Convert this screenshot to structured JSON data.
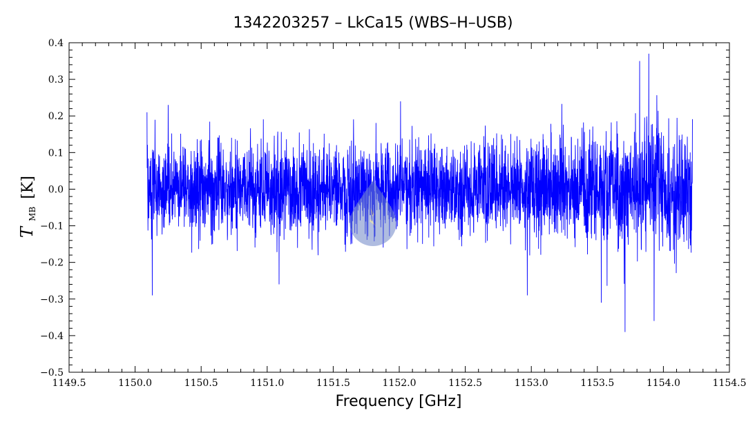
{
  "chart_data": {
    "type": "line",
    "title": "1342203257 – LkCa15 (WBS–H–USB)",
    "xlabel": "Frequency [GHz]",
    "ylabel": {
      "symbol": "T",
      "subscript": "MB",
      "unit": "[K]"
    },
    "xlim": [
      1149.5,
      1154.5
    ],
    "ylim": [
      -0.5,
      0.4
    ],
    "xticks": [
      1149.5,
      1150.0,
      1150.5,
      1151.0,
      1151.5,
      1152.0,
      1152.5,
      1153.0,
      1153.5,
      1154.0,
      1154.5
    ],
    "xtick_labels": [
      "1149.5",
      "1150.0",
      "1150.5",
      "1151.0",
      "1151.5",
      "1152.0",
      "1152.5",
      "1153.0",
      "1153.5",
      "1154.0",
      "1154.5"
    ],
    "yticks": [
      -0.5,
      -0.4,
      -0.3,
      -0.2,
      -0.1,
      0.0,
      0.1,
      0.2,
      0.3,
      0.4
    ],
    "ytick_labels": [
      "−0.5",
      "−0.4",
      "−0.3",
      "−0.2",
      "−0.1",
      "0.0",
      "0.1",
      "0.2",
      "0.3",
      "0.4"
    ],
    "grid": false,
    "series": [
      {
        "color": "#0000ff",
        "x_start": 1150.09,
        "x_end": 1154.22,
        "noise_rms": 0.07,
        "noise_rms_end": 0.1,
        "y_peak_max": 0.37,
        "y_peak_min": -0.39,
        "highlights": [
          {
            "x": 1153.89,
            "y": 0.37
          },
          {
            "x": 1153.82,
            "y": 0.35
          },
          {
            "x": 1153.71,
            "y": -0.39
          },
          {
            "x": 1153.93,
            "y": -0.36
          },
          {
            "x": 1150.13,
            "y": -0.29
          },
          {
            "x": 1151.09,
            "y": -0.26
          },
          {
            "x": 1153.53,
            "y": -0.31
          },
          {
            "x": 1152.97,
            "y": -0.29
          },
          {
            "x": 1152.01,
            "y": 0.24
          },
          {
            "x": 1150.25,
            "y": 0.23
          },
          {
            "x": 1150.09,
            "y": 0.21
          }
        ]
      }
    ],
    "watermark_color": "#6f86c8"
  }
}
